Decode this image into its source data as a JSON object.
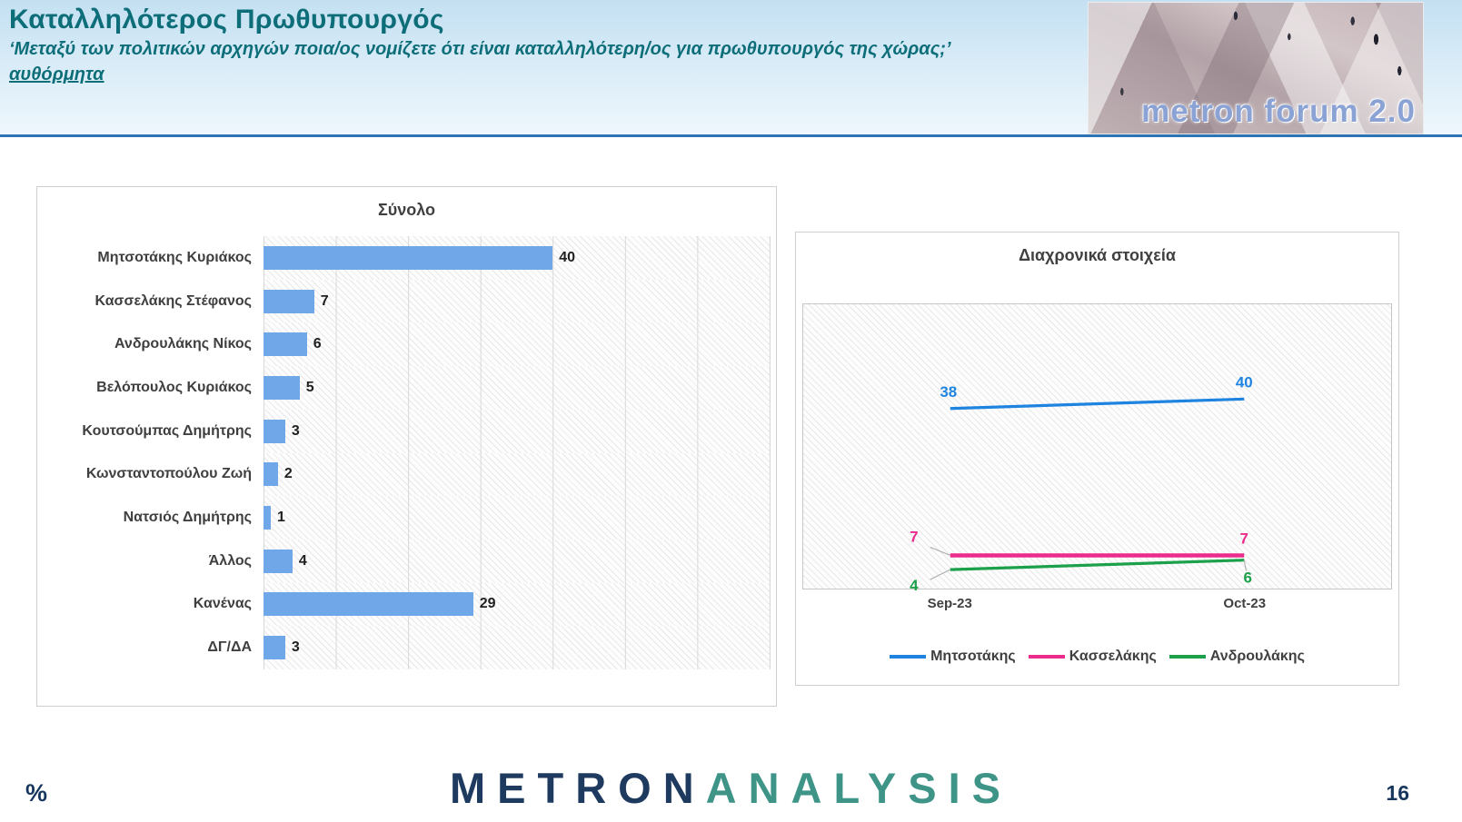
{
  "header": {
    "title": "Καταλληλότερος Πρωθυπουργός",
    "subtitle": "‘Μεταξύ των πολιτικών αρχηγών ποια/ος νομίζετε ότι είναι καταλληλότερη/ος για πρωθυπουργός της χώρας;’",
    "note": "αυθόρμητα"
  },
  "logo": {
    "text": "metron forum 2.0"
  },
  "chart_data": [
    {
      "type": "bar",
      "orientation": "horizontal",
      "title": "Σύνολο",
      "categories": [
        "Μητσοτάκης Κυριάκος",
        "Κασσελάκης Στέφανος",
        "Ανδρουλάκης Νίκος",
        "Βελόπουλος Κυριάκος",
        "Κουτσούμπας Δημήτρης",
        "Κωνσταντοπούλου Ζωή",
        "Νατσιός Δημήτρης",
        "Άλλος",
        "Κανένας",
        "ΔΓ/ΔΑ"
      ],
      "values": [
        40,
        7,
        6,
        5,
        3,
        2,
        1,
        4,
        29,
        3
      ],
      "xlim": [
        0,
        70
      ],
      "grid": true,
      "bar_color": "#6fa7e8"
    },
    {
      "type": "line",
      "title": "Διαχρονικά στοιχεία",
      "x": [
        "Sep-23",
        "Oct-23"
      ],
      "series": [
        {
          "name": "Μητσοτάκης",
          "color": "#1e84e0",
          "values": [
            38,
            40
          ]
        },
        {
          "name": "Κασσελάκης",
          "color": "#ec2c8d",
          "values": [
            7,
            7
          ]
        },
        {
          "name": "Ανδρουλάκης",
          "color": "#1ca04a",
          "values": [
            4,
            6
          ]
        }
      ],
      "ylim": [
        0,
        60
      ],
      "grid": false,
      "legend_position": "bottom"
    }
  ],
  "footer": {
    "percent": "%",
    "page": "16",
    "brand_metron": "METRON",
    "brand_analysis": "ANALYSIS"
  }
}
